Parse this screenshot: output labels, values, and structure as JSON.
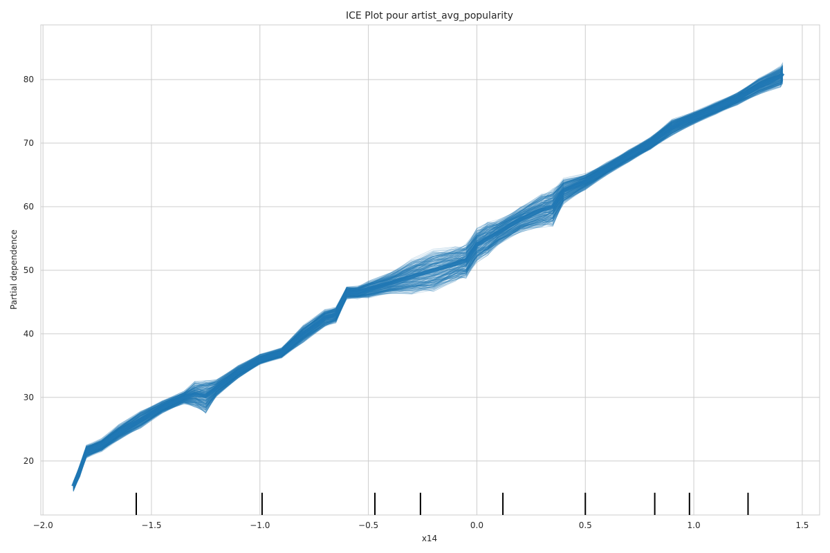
{
  "chart_data": {
    "type": "line",
    "title": "ICE Plot pour artist_avg_popularity",
    "xlabel": "x14",
    "ylabel": "Partial dependence",
    "xlim": [
      -2.01,
      1.58
    ],
    "ylim": [
      11.5,
      88.6
    ],
    "xticks": [
      -2.0,
      -1.5,
      -1.0,
      -0.5,
      0.0,
      0.5,
      1.0,
      1.5
    ],
    "xtick_labels": [
      "−2.0",
      "−1.5",
      "−1.0",
      "−0.5",
      "0.0",
      "0.5",
      "1.0",
      "1.5"
    ],
    "yticks": [
      20,
      30,
      40,
      50,
      60,
      70,
      80
    ],
    "ytick_labels": [
      "20",
      "30",
      "40",
      "50",
      "60",
      "70",
      "80"
    ],
    "grid": true,
    "line_color": "#1f77b4",
    "line_alpha": 0.25,
    "individual_line_count": 250,
    "center_line_x": [
      -1.86,
      -1.83,
      -1.8,
      -1.73,
      -1.65,
      -1.55,
      -1.45,
      -1.35,
      -1.3,
      -1.25,
      -1.2,
      -1.1,
      -1.0,
      -0.9,
      -0.8,
      -0.7,
      -0.65,
      -0.6,
      -0.55,
      -0.5,
      -0.4,
      -0.3,
      -0.2,
      -0.1,
      -0.05,
      0.0,
      0.05,
      0.1,
      0.2,
      0.3,
      0.35,
      0.4,
      0.5,
      0.6,
      0.7,
      0.8,
      0.9,
      1.0,
      1.1,
      1.2,
      1.3,
      1.4,
      1.41
    ],
    "center_line_y": [
      16.0,
      18.5,
      21.5,
      22.5,
      24.5,
      26.5,
      28.5,
      30.0,
      30.5,
      30.2,
      31.5,
      34.0,
      36.0,
      37.0,
      40.0,
      42.5,
      43.0,
      46.5,
      46.5,
      47.0,
      48.0,
      49.0,
      50.0,
      51.0,
      51.5,
      54.0,
      55.0,
      56.0,
      58.0,
      59.5,
      60.0,
      62.5,
      64.0,
      66.0,
      68.0,
      70.0,
      72.5,
      74.0,
      75.5,
      77.0,
      79.0,
      80.5,
      81.0
    ],
    "center_line_spread": [
      1.2,
      1.5,
      1.5,
      1.5,
      1.8,
      2.0,
      1.5,
      1.5,
      3.0,
      4.0,
      2.0,
      1.5,
      1.2,
      1.2,
      2.0,
      2.0,
      2.0,
      1.5,
      1.5,
      2.0,
      2.5,
      4.0,
      5.0,
      4.0,
      4.0,
      4.0,
      4.0,
      3.0,
      3.0,
      4.0,
      4.5,
      3.0,
      2.0,
      1.5,
      1.5,
      1.5,
      2.0,
      1.5,
      1.5,
      1.5,
      2.0,
      2.5,
      2.5
    ],
    "rug_x": [
      -1.57,
      -0.99,
      -0.47,
      -0.26,
      0.12,
      0.5,
      0.82,
      0.98,
      1.25
    ]
  }
}
